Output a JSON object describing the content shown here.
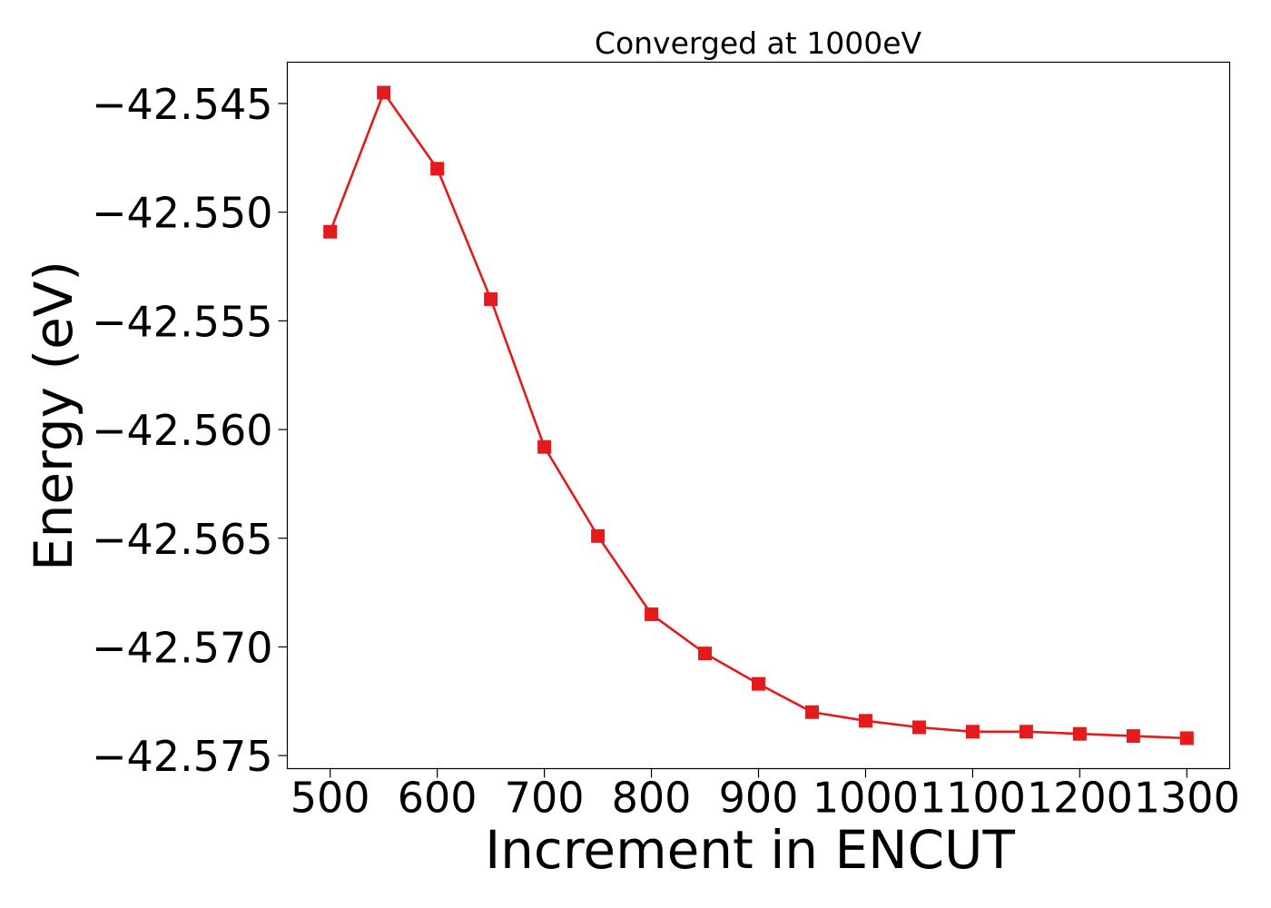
{
  "chart_data": {
    "type": "line",
    "title": "Converged at 1000eV",
    "xlabel": "Increment in ENCUT",
    "ylabel": "Energy (eV)",
    "xlim": [
      460,
      1340
    ],
    "ylim": [
      -42.5756,
      -42.5431
    ],
    "xticks": [
      500,
      600,
      700,
      800,
      900,
      1000,
      1100,
      1200,
      1300
    ],
    "xtick_labels": [
      "500",
      "600",
      "700",
      "800",
      "900",
      "1000",
      "1100",
      "1200",
      "1300"
    ],
    "yticks": [
      -42.545,
      -42.55,
      -42.555,
      -42.56,
      -42.565,
      -42.57,
      -42.575
    ],
    "ytick_labels": [
      "−42.545",
      "−42.550",
      "−42.555",
      "−42.560",
      "−42.565",
      "−42.570",
      "−42.575"
    ],
    "grid": false,
    "legend": "none",
    "series": [
      {
        "color": "#e41a1c",
        "marker": "square",
        "x": [
          500,
          550,
          600,
          650,
          700,
          750,
          800,
          850,
          900,
          950,
          1000,
          1050,
          1100,
          1150,
          1200,
          1250,
          1300
        ],
        "y": [
          -42.5509,
          -42.5445,
          -42.548,
          -42.554,
          -42.5608,
          -42.5649,
          -42.5685,
          -42.5703,
          -42.5717,
          -42.573,
          -42.5734,
          -42.5737,
          -42.5739,
          -42.5739,
          -42.574,
          -42.5741,
          -42.5742
        ]
      }
    ]
  }
}
